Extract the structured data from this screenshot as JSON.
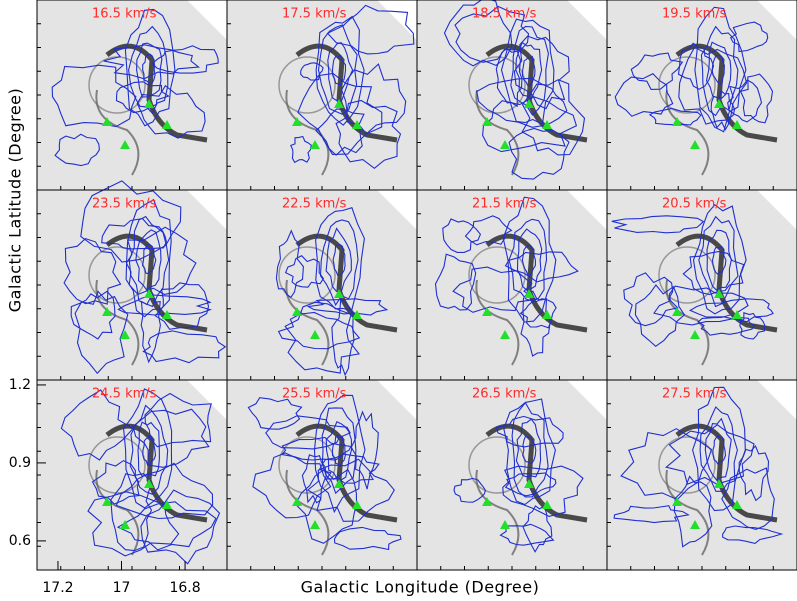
{
  "figure": {
    "panels": [
      "16.5 km/s",
      "17.5 km/s",
      "18.5 km/s",
      "19.5 km/s",
      "23.5 km/s",
      "22.5 km/s",
      "21.5 km/s",
      "20.5 km/s",
      "24.5 km/s",
      "25.5 km/s",
      "26.5 km/s",
      "27.5 km/s"
    ],
    "y_axis": {
      "label": "Galactic Latitude (Degree)",
      "lim": [
        0.488,
        1.219
      ],
      "ticks": [
        1.2,
        0.9,
        0.6
      ]
    },
    "x_axis": {
      "label": "Galactic Longitude (Degree)",
      "lim": [
        17.266,
        16.668
      ],
      "ticks": [
        17.2,
        17,
        16.8
      ]
    }
  }
}
